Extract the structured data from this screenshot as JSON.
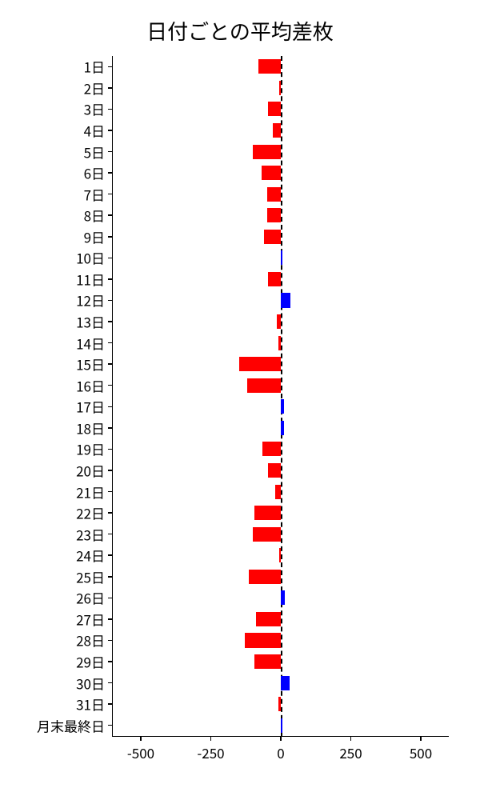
{
  "chart": {
    "type": "bar-horizontal",
    "title": "日付ごとの平均差枚",
    "title_fontsize": 26,
    "background_color": "#ffffff",
    "axis_color": "#000000",
    "text_color": "#000000",
    "label_fontsize": 17,
    "neg_color": "#ff0000",
    "pos_color": "#0000ff",
    "xlim": [
      -600,
      600
    ],
    "xticks": [
      -500,
      -250,
      0,
      250,
      500
    ],
    "zero_line_dashed": true,
    "categories": [
      "1日",
      "2日",
      "3日",
      "4日",
      "5日",
      "6日",
      "7日",
      "8日",
      "9日",
      "10日",
      "11日",
      "12日",
      "13日",
      "14日",
      "15日",
      "16日",
      "17日",
      "18日",
      "19日",
      "20日",
      "21日",
      "22日",
      "23日",
      "24日",
      "25日",
      "26日",
      "27日",
      "28日",
      "29日",
      "30日",
      "31日",
      "月末最終日"
    ],
    "values": [
      -80,
      -5,
      -45,
      -30,
      -100,
      -70,
      -50,
      -50,
      -60,
      5,
      -45,
      35,
      -15,
      -8,
      -150,
      -120,
      10,
      12,
      -65,
      -45,
      -20,
      -95,
      -100,
      -5,
      -115,
      15,
      -90,
      -130,
      -95,
      30,
      -10,
      5
    ],
    "bar_height_ratio": 0.68
  }
}
